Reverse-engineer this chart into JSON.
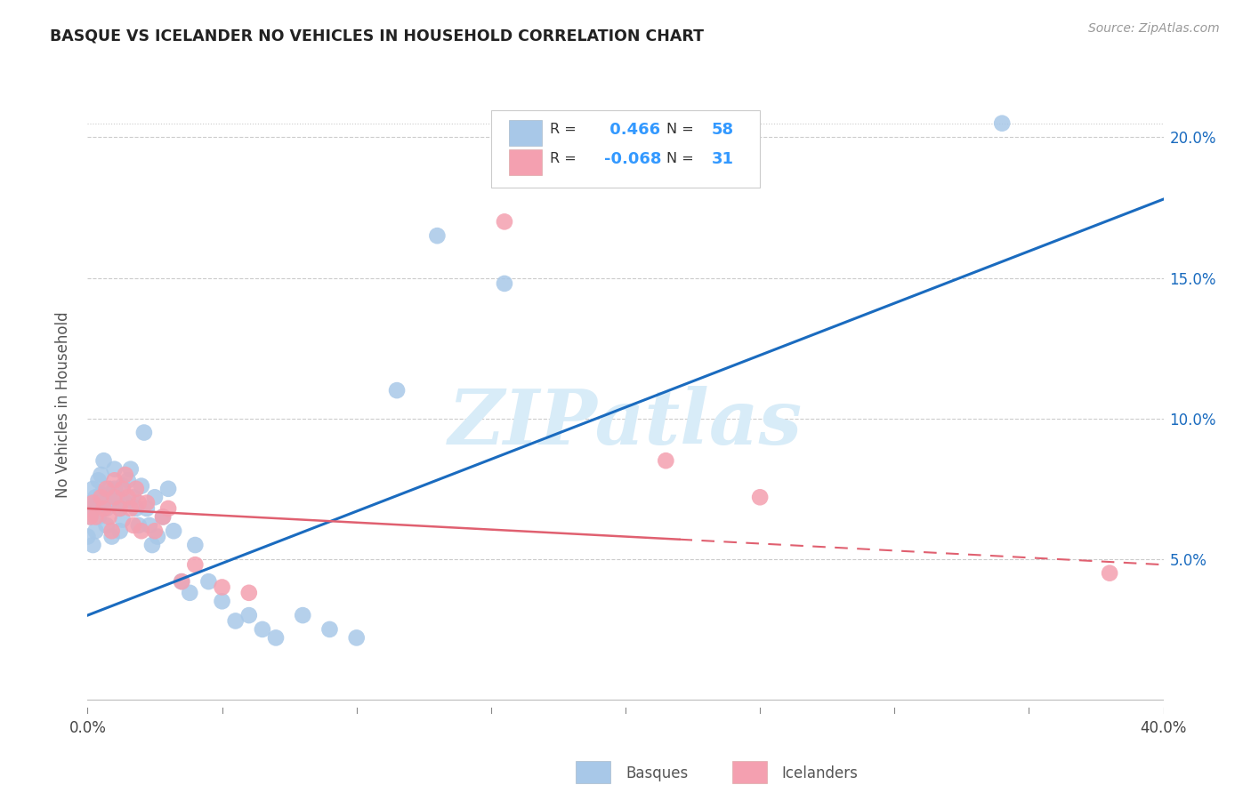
{
  "title": "BASQUE VS ICELANDER NO VEHICLES IN HOUSEHOLD CORRELATION CHART",
  "source": "Source: ZipAtlas.com",
  "ylabel": "No Vehicles in Household",
  "xlim": [
    0.0,
    0.4
  ],
  "ylim": [
    -0.005,
    0.215
  ],
  "xtick_vals": [
    0.0,
    0.05,
    0.1,
    0.15,
    0.2,
    0.25,
    0.3,
    0.35,
    0.4
  ],
  "xtick_labels": [
    "0.0%",
    "",
    "",
    "",
    "",
    "",
    "",
    "",
    "40.0%"
  ],
  "ytick_vals": [
    0.0,
    0.05,
    0.1,
    0.15,
    0.2
  ],
  "ytick_labels_right": [
    "",
    "5.0%",
    "10.0%",
    "15.0%",
    "20.0%"
  ],
  "basque_R": 0.466,
  "basque_N": 58,
  "icelander_R": -0.068,
  "icelander_N": 31,
  "basque_color": "#a8c8e8",
  "icelander_color": "#f4a0b0",
  "basque_line_color": "#1a6bbf",
  "icelander_line_color": "#e06070",
  "legend_R_color": "#3399ff",
  "watermark_color": "#d8ecf8",
  "basque_x": [
    0.0,
    0.001,
    0.001,
    0.002,
    0.002,
    0.002,
    0.003,
    0.003,
    0.004,
    0.004,
    0.005,
    0.005,
    0.006,
    0.006,
    0.007,
    0.007,
    0.008,
    0.009,
    0.009,
    0.01,
    0.01,
    0.011,
    0.012,
    0.012,
    0.013,
    0.013,
    0.014,
    0.015,
    0.016,
    0.017,
    0.018,
    0.019,
    0.02,
    0.021,
    0.022,
    0.023,
    0.024,
    0.025,
    0.026,
    0.028,
    0.03,
    0.032,
    0.035,
    0.038,
    0.04,
    0.045,
    0.05,
    0.055,
    0.06,
    0.065,
    0.07,
    0.08,
    0.09,
    0.1,
    0.115,
    0.13,
    0.155,
    0.34
  ],
  "basque_y": [
    0.058,
    0.07,
    0.065,
    0.075,
    0.068,
    0.055,
    0.072,
    0.06,
    0.078,
    0.065,
    0.08,
    0.073,
    0.085,
    0.07,
    0.068,
    0.062,
    0.075,
    0.07,
    0.058,
    0.075,
    0.082,
    0.072,
    0.068,
    0.06,
    0.076,
    0.064,
    0.07,
    0.078,
    0.082,
    0.072,
    0.068,
    0.062,
    0.076,
    0.095,
    0.068,
    0.062,
    0.055,
    0.072,
    0.058,
    0.065,
    0.075,
    0.06,
    0.042,
    0.038,
    0.055,
    0.042,
    0.035,
    0.028,
    0.03,
    0.025,
    0.022,
    0.03,
    0.025,
    0.022,
    0.11,
    0.165,
    0.148,
    0.205
  ],
  "icelander_x": [
    0.001,
    0.002,
    0.003,
    0.005,
    0.006,
    0.007,
    0.008,
    0.009,
    0.01,
    0.01,
    0.012,
    0.013,
    0.014,
    0.015,
    0.016,
    0.017,
    0.018,
    0.019,
    0.02,
    0.022,
    0.025,
    0.028,
    0.03,
    0.035,
    0.04,
    0.05,
    0.06,
    0.155,
    0.215,
    0.25,
    0.38
  ],
  "icelander_y": [
    0.065,
    0.07,
    0.065,
    0.072,
    0.068,
    0.075,
    0.065,
    0.06,
    0.072,
    0.078,
    0.068,
    0.075,
    0.08,
    0.072,
    0.068,
    0.062,
    0.075,
    0.07,
    0.06,
    0.07,
    0.06,
    0.065,
    0.068,
    0.042,
    0.048,
    0.04,
    0.038,
    0.17,
    0.085,
    0.072,
    0.045
  ],
  "blue_line_x0": 0.0,
  "blue_line_y0": 0.03,
  "blue_line_x1": 0.4,
  "blue_line_y1": 0.178,
  "pink_line_x0": 0.0,
  "pink_line_y0": 0.068,
  "pink_line_x1": 0.4,
  "pink_line_y1": 0.048
}
